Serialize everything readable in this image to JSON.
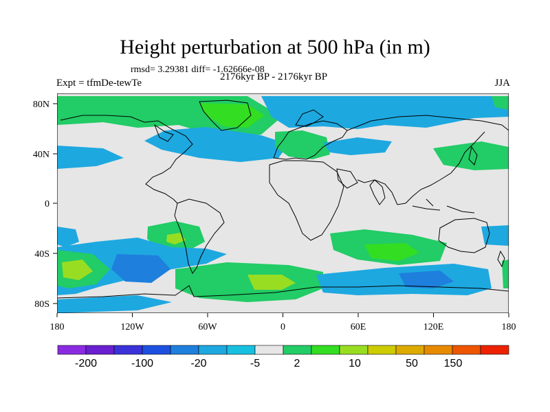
{
  "figure": {
    "title": "Height perturbation at 500 hPa (in m)",
    "stats": "rmsd= 3.29381 diff= -1.62666e-08",
    "experiment": "Expt = tfmDe-tewTe",
    "period": "2176kyr BP - 2176kyr BP",
    "season": "JJA"
  },
  "map": {
    "projection": "cylindrical-equidistant",
    "lon_range": [
      -180,
      180
    ],
    "lat_range": [
      -90,
      90
    ],
    "x_ticks": [
      "180",
      "120W",
      "60W",
      "0",
      "60E",
      "120E",
      "180"
    ],
    "y_ticks": [
      "80N",
      "40N",
      "0",
      "40S",
      "80S"
    ],
    "background_color": "#e6e6e6",
    "features": [
      {
        "name": "green-arctic-canada",
        "level_color": "#22cc66"
      },
      {
        "name": "blue-north-atlantic",
        "level_color": "#1ea8e0"
      },
      {
        "name": "blue-north-pacific",
        "level_color": "#1ea8e0"
      },
      {
        "name": "green-east-asia",
        "level_color": "#22cc66"
      },
      {
        "name": "green-south-pacific",
        "level_color": "#22cc66"
      },
      {
        "name": "blue-south-pacific",
        "level_color": "#1e7fdd"
      },
      {
        "name": "green-south-atlantic-ring",
        "level_color": "#22cc66"
      },
      {
        "name": "green-southern-indian",
        "level_color": "#22cc66"
      },
      {
        "name": "blue-southern-ocean-indian",
        "level_color": "#1ea8e0"
      }
    ]
  },
  "colorbar": {
    "colors": [
      "#8a2be2",
      "#6a1fd0",
      "#3a32d8",
      "#1e50e0",
      "#1e7fdd",
      "#1ea8e0",
      "#18c0e0",
      "#e6e6e6",
      "#22cc66",
      "#33dd22",
      "#99dd22",
      "#cccc00",
      "#ddaa00",
      "#e88a00",
      "#ee5500",
      "#ee2200"
    ],
    "labels": [
      "-200",
      "-100",
      "-20",
      "-5",
      "2",
      "10",
      "50",
      "150"
    ]
  }
}
